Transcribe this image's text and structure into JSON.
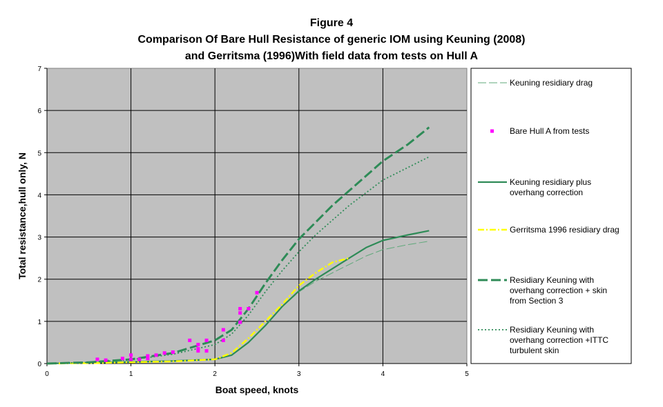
{
  "chart_data": {
    "type": "line",
    "title_lines": [
      "Figure 4",
      "Comparison Of Bare Hull Resistance of generic IOM using Keuning (2008)",
      "and Gerritsma (1996)With field data from tests on Hull A"
    ],
    "xlabel": "Boat speed, knots",
    "ylabel": "Total resistance,hull only, N",
    "xlim": [
      0,
      5
    ],
    "ylim": [
      0,
      7
    ],
    "x_ticks": [
      0,
      1,
      2,
      3,
      4,
      5
    ],
    "y_ticks": [
      0,
      1,
      2,
      3,
      4,
      5,
      6,
      7
    ],
    "grid": true,
    "legend_position": "right",
    "colors": {
      "plot_bg": "#c0c0c0",
      "green": "#2e8b57",
      "light_green": "#5fa87a",
      "magenta": "#ff00ff",
      "yellow": "#ffff00"
    },
    "series": [
      {
        "name": "Keuning residiary drag",
        "legend_lines": [
          "Keuning residiary drag"
        ],
        "style": "long-dash-thin",
        "x": [
          0,
          0.5,
          1,
          1.5,
          2,
          2.2,
          2.4,
          2.6,
          2.8,
          3,
          3.2,
          3.4,
          3.6,
          3.8,
          4,
          4.3,
          4.55
        ],
        "y": [
          0,
          0.02,
          0.04,
          0.06,
          0.1,
          0.2,
          0.5,
          0.9,
          1.35,
          1.7,
          1.95,
          2.15,
          2.35,
          2.55,
          2.7,
          2.82,
          2.9
        ]
      },
      {
        "name": "Bare Hull A from tests",
        "legend_lines": [
          "Bare Hull A from tests"
        ],
        "style": "markers",
        "x": [
          0.6,
          0.7,
          0.9,
          1.0,
          1.0,
          1.1,
          1.2,
          1.2,
          1.3,
          1.4,
          1.5,
          1.7,
          1.8,
          1.8,
          1.8,
          1.9,
          1.9,
          2.1,
          2.1,
          2.3,
          2.3,
          2.3,
          2.4,
          2.5
        ],
        "y": [
          0.1,
          0.08,
          0.12,
          0.2,
          0.1,
          0.1,
          0.18,
          0.12,
          0.2,
          0.25,
          0.27,
          0.55,
          0.45,
          0.35,
          0.3,
          0.55,
          0.3,
          0.8,
          0.55,
          1.3,
          1.2,
          0.98,
          1.3,
          1.68
        ]
      },
      {
        "name": "Keuning residiary plus overhang correction",
        "legend_lines": [
          "Keuning residiary plus",
          "overhang correction"
        ],
        "style": "solid",
        "x": [
          0,
          0.5,
          1,
          1.5,
          2,
          2.2,
          2.4,
          2.6,
          2.8,
          3,
          3.2,
          3.4,
          3.6,
          3.8,
          4,
          4.3,
          4.55
        ],
        "y": [
          0,
          0.02,
          0.04,
          0.06,
          0.1,
          0.2,
          0.5,
          0.9,
          1.35,
          1.72,
          2.0,
          2.25,
          2.5,
          2.75,
          2.92,
          3.05,
          3.15
        ]
      },
      {
        "name": "Gerritsma 1996 residiary drag",
        "legend_lines": [
          "Gerritsma 1996 residiary drag"
        ],
        "style": "dash-dot",
        "x": [
          0,
          0.5,
          1,
          1.5,
          2,
          2.2,
          2.4,
          2.6,
          2.8,
          3,
          3.2,
          3.4,
          3.6
        ],
        "y": [
          0,
          0.01,
          0.03,
          0.05,
          0.1,
          0.25,
          0.6,
          1.0,
          1.4,
          1.85,
          2.15,
          2.4,
          2.5
        ]
      },
      {
        "name": "Residiary Keuning with overhang correction + skin from Section 3",
        "legend_lines": [
          "Residiary Keuning with",
          "overhang correction + skin",
          "from Section 3"
        ],
        "style": "long-dash-thick",
        "x": [
          0,
          0.5,
          1,
          1.5,
          2,
          2.2,
          2.4,
          2.6,
          2.8,
          3,
          3.2,
          3.4,
          3.6,
          3.8,
          4,
          4.3,
          4.55
        ],
        "y": [
          0,
          0.03,
          0.1,
          0.25,
          0.55,
          0.8,
          1.3,
          1.9,
          2.45,
          2.95,
          3.35,
          3.75,
          4.1,
          4.45,
          4.8,
          5.2,
          5.6
        ]
      },
      {
        "name": "Residiary Keuning with overhang correction +ITTC turbulent skin",
        "legend_lines": [
          "Residiary Keuning with",
          "overhang correction +ITTC",
          "turbulent skin"
        ],
        "style": "dotted",
        "x": [
          0,
          0.5,
          1,
          1.5,
          2,
          2.2,
          2.4,
          2.6,
          2.8,
          3,
          3.2,
          3.4,
          3.6,
          3.8,
          4,
          4.3,
          4.55
        ],
        "y": [
          0,
          0.03,
          0.09,
          0.22,
          0.45,
          0.7,
          1.15,
          1.7,
          2.2,
          2.65,
          3.05,
          3.4,
          3.75,
          4.05,
          4.35,
          4.65,
          4.9
        ]
      }
    ]
  }
}
